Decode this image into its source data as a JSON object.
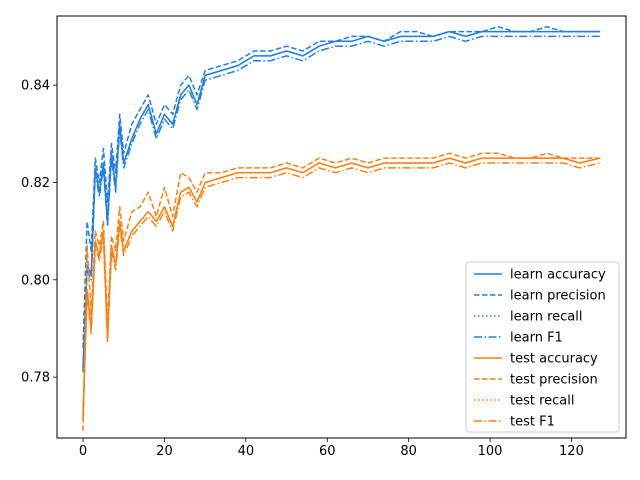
{
  "chart_data": {
    "type": "line",
    "title": "",
    "xlabel": "",
    "ylabel": "",
    "xlim": [
      -6.4,
      133.4
    ],
    "ylim": [
      0.7675,
      0.8542
    ],
    "xticks": [
      0,
      20,
      40,
      60,
      80,
      100,
      120
    ],
    "yticks": [
      0.78,
      0.8,
      0.82,
      0.84
    ],
    "ytick_labels": [
      "0.78",
      "0.80",
      "0.82",
      "0.84"
    ],
    "grid": false,
    "legend_position": "lower-right",
    "colors": {
      "learn": "#1f7ee8",
      "test": "#ff7f0e",
      "axes": "#000000"
    },
    "series": [
      {
        "name": "learn accuracy",
        "color": "#1f7ee8",
        "dash": "solid",
        "x": [
          0,
          1,
          2,
          3,
          4,
          5,
          6,
          7,
          8,
          9,
          10,
          12,
          14,
          16,
          18,
          20,
          22,
          24,
          26,
          28,
          30,
          34,
          38,
          42,
          46,
          50,
          54,
          58,
          62,
          66,
          70,
          74,
          78,
          82,
          86,
          90,
          94,
          98,
          102,
          106,
          110,
          114,
          118,
          122,
          127
        ],
        "values": [
          0.782,
          0.803,
          0.801,
          0.823,
          0.818,
          0.824,
          0.812,
          0.826,
          0.819,
          0.832,
          0.824,
          0.829,
          0.833,
          0.836,
          0.83,
          0.834,
          0.832,
          0.838,
          0.84,
          0.836,
          0.842,
          0.843,
          0.844,
          0.846,
          0.846,
          0.847,
          0.846,
          0.848,
          0.849,
          0.849,
          0.85,
          0.849,
          0.85,
          0.85,
          0.85,
          0.851,
          0.85,
          0.851,
          0.851,
          0.851,
          0.851,
          0.851,
          0.851,
          0.851,
          0.851
        ]
      },
      {
        "name": "learn precision",
        "color": "#1f7ee8",
        "dash": "dashed",
        "x": [
          0,
          1,
          2,
          3,
          4,
          5,
          6,
          7,
          8,
          9,
          10,
          12,
          14,
          16,
          18,
          20,
          22,
          24,
          26,
          28,
          30,
          34,
          38,
          42,
          46,
          50,
          54,
          58,
          62,
          66,
          70,
          74,
          78,
          82,
          86,
          90,
          94,
          98,
          102,
          106,
          110,
          114,
          118,
          122,
          127
        ],
        "values": [
          0.786,
          0.812,
          0.806,
          0.825,
          0.82,
          0.827,
          0.816,
          0.828,
          0.822,
          0.834,
          0.826,
          0.832,
          0.835,
          0.838,
          0.832,
          0.836,
          0.834,
          0.84,
          0.842,
          0.838,
          0.843,
          0.844,
          0.845,
          0.847,
          0.847,
          0.848,
          0.847,
          0.849,
          0.849,
          0.85,
          0.85,
          0.849,
          0.851,
          0.851,
          0.85,
          0.851,
          0.851,
          0.851,
          0.852,
          0.851,
          0.851,
          0.852,
          0.851,
          0.851,
          0.851
        ]
      },
      {
        "name": "learn recall",
        "color": "#1f7ee8",
        "dash": "dotted",
        "x": [
          0,
          1,
          2,
          3,
          4,
          5,
          6,
          7,
          8,
          9,
          10,
          12,
          14,
          16,
          18,
          20,
          22,
          24,
          26,
          28,
          30,
          34,
          38,
          42,
          46,
          50,
          54,
          58,
          62,
          66,
          70,
          74,
          78,
          82,
          86,
          90,
          94,
          98,
          102,
          106,
          110,
          114,
          118,
          122,
          127
        ],
        "values": [
          0.782,
          0.803,
          0.801,
          0.823,
          0.818,
          0.824,
          0.812,
          0.826,
          0.819,
          0.832,
          0.824,
          0.829,
          0.833,
          0.836,
          0.83,
          0.834,
          0.832,
          0.838,
          0.84,
          0.836,
          0.842,
          0.843,
          0.844,
          0.846,
          0.846,
          0.847,
          0.846,
          0.848,
          0.849,
          0.849,
          0.85,
          0.849,
          0.85,
          0.85,
          0.85,
          0.851,
          0.85,
          0.851,
          0.851,
          0.851,
          0.851,
          0.851,
          0.851,
          0.851,
          0.851
        ]
      },
      {
        "name": "learn F1",
        "color": "#1f7ee8",
        "dash": "dashdot",
        "x": [
          0,
          1,
          2,
          3,
          4,
          5,
          6,
          7,
          8,
          9,
          10,
          12,
          14,
          16,
          18,
          20,
          22,
          24,
          26,
          28,
          30,
          34,
          38,
          42,
          46,
          50,
          54,
          58,
          62,
          66,
          70,
          74,
          78,
          82,
          86,
          90,
          94,
          98,
          102,
          106,
          110,
          114,
          118,
          122,
          127
        ],
        "values": [
          0.781,
          0.802,
          0.8,
          0.822,
          0.817,
          0.823,
          0.811,
          0.825,
          0.818,
          0.831,
          0.823,
          0.828,
          0.832,
          0.835,
          0.829,
          0.833,
          0.831,
          0.837,
          0.839,
          0.835,
          0.841,
          0.842,
          0.843,
          0.845,
          0.845,
          0.846,
          0.845,
          0.847,
          0.848,
          0.848,
          0.849,
          0.848,
          0.849,
          0.849,
          0.849,
          0.85,
          0.849,
          0.85,
          0.85,
          0.85,
          0.85,
          0.85,
          0.85,
          0.85,
          0.85
        ]
      },
      {
        "name": "test accuracy",
        "color": "#ff7f0e",
        "dash": "solid",
        "x": [
          0,
          1,
          2,
          3,
          4,
          5,
          6,
          7,
          8,
          9,
          10,
          12,
          14,
          16,
          18,
          20,
          22,
          24,
          26,
          28,
          30,
          34,
          38,
          42,
          46,
          50,
          54,
          58,
          62,
          66,
          70,
          74,
          78,
          82,
          86,
          90,
          94,
          98,
          102,
          106,
          110,
          114,
          118,
          122,
          127
        ],
        "values": [
          0.772,
          0.798,
          0.79,
          0.808,
          0.805,
          0.81,
          0.788,
          0.807,
          0.803,
          0.812,
          0.806,
          0.81,
          0.812,
          0.814,
          0.812,
          0.815,
          0.811,
          0.818,
          0.819,
          0.816,
          0.82,
          0.821,
          0.822,
          0.822,
          0.822,
          0.823,
          0.822,
          0.824,
          0.823,
          0.824,
          0.823,
          0.824,
          0.824,
          0.824,
          0.824,
          0.825,
          0.824,
          0.825,
          0.825,
          0.825,
          0.825,
          0.825,
          0.825,
          0.824,
          0.825
        ]
      },
      {
        "name": "test precision",
        "color": "#ff7f0e",
        "dash": "dashed",
        "x": [
          0,
          1,
          2,
          3,
          4,
          5,
          6,
          7,
          8,
          9,
          10,
          12,
          14,
          16,
          18,
          20,
          22,
          24,
          26,
          28,
          30,
          34,
          38,
          42,
          46,
          50,
          54,
          58,
          62,
          66,
          70,
          74,
          78,
          82,
          86,
          90,
          94,
          98,
          102,
          106,
          110,
          114,
          118,
          122,
          127
        ],
        "values": [
          0.769,
          0.807,
          0.793,
          0.81,
          0.807,
          0.812,
          0.791,
          0.809,
          0.806,
          0.815,
          0.808,
          0.814,
          0.815,
          0.818,
          0.813,
          0.819,
          0.813,
          0.822,
          0.821,
          0.818,
          0.822,
          0.822,
          0.823,
          0.823,
          0.823,
          0.824,
          0.823,
          0.825,
          0.824,
          0.825,
          0.824,
          0.825,
          0.825,
          0.825,
          0.825,
          0.826,
          0.825,
          0.826,
          0.826,
          0.825,
          0.825,
          0.826,
          0.825,
          0.825,
          0.825
        ]
      },
      {
        "name": "test recall",
        "color": "#ff7f0e",
        "dash": "dotted",
        "x": [
          0,
          1,
          2,
          3,
          4,
          5,
          6,
          7,
          8,
          9,
          10,
          12,
          14,
          16,
          18,
          20,
          22,
          24,
          26,
          28,
          30,
          34,
          38,
          42,
          46,
          50,
          54,
          58,
          62,
          66,
          70,
          74,
          78,
          82,
          86,
          90,
          94,
          98,
          102,
          106,
          110,
          114,
          118,
          122,
          127
        ],
        "values": [
          0.772,
          0.798,
          0.79,
          0.808,
          0.805,
          0.81,
          0.788,
          0.807,
          0.803,
          0.812,
          0.806,
          0.81,
          0.812,
          0.814,
          0.812,
          0.815,
          0.811,
          0.818,
          0.819,
          0.816,
          0.82,
          0.821,
          0.822,
          0.822,
          0.822,
          0.823,
          0.822,
          0.824,
          0.823,
          0.824,
          0.823,
          0.824,
          0.824,
          0.824,
          0.824,
          0.825,
          0.824,
          0.825,
          0.825,
          0.825,
          0.825,
          0.825,
          0.825,
          0.824,
          0.825
        ]
      },
      {
        "name": "test F1",
        "color": "#ff7f0e",
        "dash": "dashdot",
        "x": [
          0,
          1,
          2,
          3,
          4,
          5,
          6,
          7,
          8,
          9,
          10,
          12,
          14,
          16,
          18,
          20,
          22,
          24,
          26,
          28,
          30,
          34,
          38,
          42,
          46,
          50,
          54,
          58,
          62,
          66,
          70,
          74,
          78,
          82,
          86,
          90,
          94,
          98,
          102,
          106,
          110,
          114,
          118,
          122,
          127
        ],
        "values": [
          0.771,
          0.797,
          0.789,
          0.807,
          0.804,
          0.809,
          0.787,
          0.806,
          0.802,
          0.811,
          0.805,
          0.809,
          0.811,
          0.813,
          0.811,
          0.814,
          0.81,
          0.817,
          0.818,
          0.815,
          0.819,
          0.82,
          0.821,
          0.821,
          0.821,
          0.822,
          0.821,
          0.823,
          0.822,
          0.823,
          0.822,
          0.823,
          0.823,
          0.823,
          0.823,
          0.824,
          0.823,
          0.824,
          0.824,
          0.824,
          0.824,
          0.824,
          0.824,
          0.823,
          0.824
        ]
      }
    ]
  }
}
